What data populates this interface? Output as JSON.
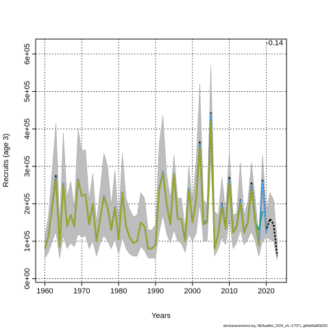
{
  "chart_data": {
    "type": "line",
    "xlabel": "Years",
    "ylabel": "Recruits (age 3)",
    "xlim": [
      1957.5,
      2025.5
    ],
    "ylim": [
      -10000,
      640000
    ],
    "x_ticks": [
      1960,
      1970,
      1980,
      1990,
      2000,
      2010,
      2020
    ],
    "y_ticks": [
      0,
      100000,
      200000,
      300000,
      400000,
      500000,
      600000
    ],
    "y_tick_labels": [
      "0e+00",
      "1e+05",
      "2e+05",
      "3e+05",
      "4e+05",
      "5e+05",
      "6e+05"
    ],
    "grid": true,
    "annotation": "-0.14",
    "footer": "stockassessment.org, NEAsaithe_2024_v4, r17971, git4a66a85b250",
    "band": {
      "x": [
        1960,
        1961,
        1962,
        1963,
        1964,
        1965,
        1966,
        1967,
        1968,
        1969,
        1970,
        1971,
        1972,
        1973,
        1974,
        1975,
        1976,
        1977,
        1978,
        1979,
        1980,
        1981,
        1982,
        1983,
        1984,
        1985,
        1986,
        1987,
        1988,
        1989,
        1990,
        1991,
        1992,
        1993,
        1994,
        1995,
        1996,
        1997,
        1998,
        1999,
        2000,
        2001,
        2002,
        2003,
        2004,
        2005,
        2006,
        2007,
        2008,
        2009,
        2010,
        2011,
        2012,
        2013,
        2014,
        2015,
        2016,
        2017,
        2018,
        2019,
        2020,
        2021,
        2022,
        2023
      ],
      "low": [
        55000,
        70000,
        100000,
        125000,
        55000,
        115000,
        80000,
        95000,
        85000,
        120000,
        110000,
        115000,
        80000,
        100000,
        60000,
        95000,
        115000,
        100000,
        80000,
        105000,
        65000,
        110000,
        80000,
        65000,
        60000,
        60000,
        85000,
        75000,
        55000,
        55000,
        55000,
        125000,
        170000,
        120000,
        95000,
        130000,
        100000,
        95000,
        70000,
        120000,
        100000,
        120000,
        200000,
        100000,
        100000,
        320000,
        60000,
        80000,
        110000,
        90000,
        160000,
        80000,
        95000,
        130000,
        90000,
        105000,
        125000,
        100000,
        60000,
        100000,
        110000,
        105000,
        100000,
        50000
      ],
      "high": [
        110000,
        170000,
        290000,
        415000,
        150000,
        390000,
        215000,
        260000,
        190000,
        400000,
        340000,
        345000,
        210000,
        280000,
        150000,
        240000,
        335000,
        300000,
        195000,
        290000,
        155000,
        335000,
        215000,
        185000,
        165000,
        170000,
        230000,
        215000,
        130000,
        130000,
        145000,
        360000,
        435000,
        280000,
        215000,
        330000,
        215000,
        215000,
        135000,
        300000,
        205000,
        310000,
        520000,
        210000,
        200000,
        570000,
        180000,
        170000,
        270000,
        180000,
        340000,
        170000,
        175000,
        310000,
        170000,
        205000,
        310000,
        215000,
        115000,
        330000,
        180000,
        230000,
        210000,
        100000
      ]
    },
    "series": [
      {
        "x": [
          1960,
          1961,
          1962,
          1963,
          1964,
          1965,
          1966,
          1967,
          1968,
          1969,
          1970,
          1971,
          1972,
          1973,
          1974,
          1975,
          1976,
          1977,
          1978,
          1979,
          1980,
          1981,
          1982,
          1983,
          1984,
          1985,
          1986,
          1987,
          1988,
          1989,
          1990,
          1991,
          1992,
          1993,
          1994,
          1995,
          1996,
          1997,
          1998,
          1999,
          2000,
          2001,
          2002,
          2003,
          2004,
          2005,
          2006,
          2007,
          2008,
          2009,
          2010,
          2011,
          2012,
          2013,
          2014,
          2015,
          2016,
          2017,
          2018,
          2019,
          2020,
          2021,
          2022,
          2023
        ],
        "values": [
          80000,
          115000,
          195000,
          275000,
          85000,
          255000,
          140000,
          170000,
          140000,
          265000,
          220000,
          225000,
          145000,
          200000,
          100000,
          160000,
          220000,
          190000,
          130000,
          190000,
          105000,
          230000,
          140000,
          110000,
          95000,
          100000,
          150000,
          140000,
          80000,
          80000,
          90000,
          240000,
          285000,
          200000,
          145000,
          280000,
          160000,
          160000,
          100000,
          240000,
          150000,
          210000,
          365000,
          150000,
          155000,
          445000,
          80000,
          120000,
          200000,
          135000,
          270000,
          125000,
          140000,
          210000,
          125000,
          150000,
          255000,
          155000,
          90000,
          265000,
          130000,
          160000,
          145000,
          60000
        ],
        "color": "#000000"
      },
      {
        "x": [
          1960,
          1961,
          1962,
          1963,
          1964,
          1965,
          1966,
          1967,
          1968,
          1969,
          1970,
          1971,
          1972,
          1973,
          1974,
          1975,
          1976,
          1977,
          1978,
          1979,
          1980,
          1981,
          1982,
          1983,
          1984,
          1985,
          1986,
          1987,
          1988,
          1989,
          1990,
          1991,
          1992,
          1993,
          1994,
          1995,
          1996,
          1997,
          1998,
          1999,
          2000,
          2001,
          2002,
          2003,
          2004,
          2005,
          2006,
          2007,
          2008,
          2009,
          2010,
          2011,
          2012,
          2013,
          2014,
          2015,
          2016,
          2017,
          2018,
          2019,
          2020
        ],
        "values": [
          80000,
          115000,
          195000,
          270000,
          85000,
          255000,
          140000,
          170000,
          140000,
          265000,
          220000,
          225000,
          145000,
          200000,
          100000,
          160000,
          220000,
          190000,
          130000,
          190000,
          105000,
          230000,
          140000,
          110000,
          95000,
          100000,
          150000,
          140000,
          80000,
          80000,
          90000,
          240000,
          285000,
          200000,
          145000,
          280000,
          160000,
          160000,
          100000,
          240000,
          150000,
          210000,
          360000,
          150000,
          155000,
          440000,
          80000,
          120000,
          198000,
          135000,
          265000,
          125000,
          140000,
          208000,
          125000,
          150000,
          250000,
          155000,
          90000,
          260000,
          120000
        ],
        "color": "#4f9fe8"
      },
      {
        "x": [
          1960,
          1961,
          1962,
          1963,
          1964,
          1965,
          1966,
          1967,
          1968,
          1969,
          1970,
          1971,
          1972,
          1973,
          1974,
          1975,
          1976,
          1977,
          1978,
          1979,
          1980,
          1981,
          1982,
          1983,
          1984,
          1985,
          1986,
          1987,
          1988,
          1989,
          1990,
          1991,
          1992,
          1993,
          1994,
          1995,
          1996,
          1997,
          1998,
          1999,
          2000,
          2001,
          2002,
          2003,
          2004,
          2005,
          2006,
          2007,
          2008,
          2009,
          2010,
          2011,
          2012,
          2013,
          2014,
          2015,
          2016,
          2017,
          2018,
          2019
        ],
        "values": [
          80000,
          115000,
          190000,
          265000,
          85000,
          250000,
          140000,
          170000,
          140000,
          262000,
          220000,
          225000,
          145000,
          200000,
          100000,
          160000,
          218000,
          190000,
          130000,
          188000,
          105000,
          228000,
          140000,
          110000,
          95000,
          100000,
          150000,
          140000,
          80000,
          80000,
          90000,
          238000,
          280000,
          200000,
          145000,
          278000,
          160000,
          160000,
          100000,
          235000,
          150000,
          208000,
          350000,
          145000,
          150000,
          420000,
          80000,
          118000,
          190000,
          132000,
          255000,
          122000,
          138000,
          200000,
          122000,
          148000,
          240000,
          150000,
          130000,
          180000
        ],
        "color": "#1a9e77"
      },
      {
        "x": [
          1960,
          1961,
          1962,
          1963,
          1964,
          1965,
          1966,
          1967,
          1968,
          1969,
          1970,
          1971,
          1972,
          1973,
          1974,
          1975,
          1976,
          1977,
          1978,
          1979,
          1980,
          1981,
          1982,
          1983,
          1984,
          1985,
          1986,
          1987,
          1988,
          1989,
          1990,
          1991,
          1992,
          1993,
          1994,
          1995,
          1996,
          1997,
          1998,
          1999,
          2000,
          2001,
          2002,
          2003,
          2004,
          2005,
          2006,
          2007,
          2008,
          2009,
          2010,
          2011,
          2012,
          2013,
          2014,
          2015,
          2016,
          2017,
          2018
        ],
        "values": [
          80000,
          115000,
          190000,
          265000,
          85000,
          250000,
          140000,
          170000,
          140000,
          262000,
          220000,
          225000,
          145000,
          200000,
          100000,
          160000,
          218000,
          190000,
          130000,
          188000,
          105000,
          228000,
          140000,
          110000,
          95000,
          100000,
          150000,
          140000,
          80000,
          80000,
          90000,
          238000,
          280000,
          200000,
          145000,
          278000,
          160000,
          160000,
          100000,
          235000,
          150000,
          208000,
          350000,
          145000,
          150000,
          420000,
          80000,
          118000,
          190000,
          132000,
          255000,
          122000,
          138000,
          200000,
          122000,
          148000,
          240000,
          150000,
          90000
        ],
        "color": "#9aa627"
      }
    ]
  }
}
